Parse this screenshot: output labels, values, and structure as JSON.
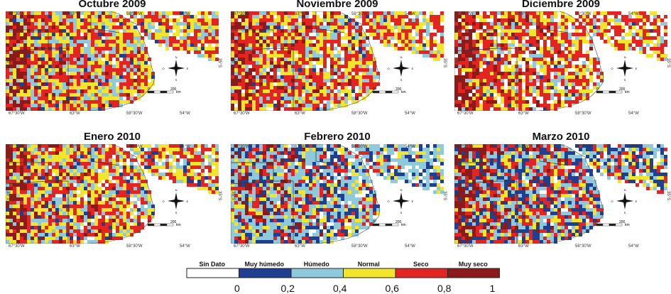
{
  "panels": [
    {
      "title": "Octubre 2009",
      "mix": [
        0.05,
        0.05,
        0.18,
        0.3,
        0.38,
        0.04
      ]
    },
    {
      "title": "Noviembre 2009",
      "mix": [
        0.12,
        0.03,
        0.14,
        0.28,
        0.38,
        0.05
      ]
    },
    {
      "title": "Diciembre 2009",
      "mix": [
        0.2,
        0.02,
        0.1,
        0.23,
        0.4,
        0.05
      ]
    },
    {
      "title": "Enero 2010",
      "mix": [
        0.08,
        0.06,
        0.2,
        0.3,
        0.33,
        0.03
      ]
    },
    {
      "title": "Febrero 2010",
      "mix": [
        0.1,
        0.18,
        0.4,
        0.14,
        0.16,
        0.02
      ]
    },
    {
      "title": "Marzo 2010",
      "mix": [
        0.07,
        0.22,
        0.26,
        0.15,
        0.28,
        0.02
      ]
    }
  ],
  "coords": {
    "top": [
      "67°30'W",
      "63°W",
      "58°30'W",
      "54°W"
    ],
    "bottom": [
      "67°30'W",
      "63°W",
      "58°30'W",
      "54°W"
    ],
    "lat": "35°S"
  },
  "scale": {
    "zero": "0",
    "max": "200",
    "unit": "km"
  },
  "compass": {
    "n": "N",
    "s": "S",
    "e": "E",
    "w": "O"
  },
  "legend": {
    "classes": [
      {
        "label": "Sin Dato",
        "color": "#ffffff"
      },
      {
        "label": "Muy húmedo",
        "color": "#1f3f93"
      },
      {
        "label": "Húmedo",
        "color": "#8ec9dc"
      },
      {
        "label": "Normal",
        "color": "#f2e52b"
      },
      {
        "label": "Seco",
        "color": "#e32421"
      },
      {
        "label": "Muy seco",
        "color": "#8b1a1a"
      }
    ],
    "ticks": [
      "0",
      "0,2",
      "0,4",
      "0,6",
      "0,8",
      "1"
    ]
  }
}
